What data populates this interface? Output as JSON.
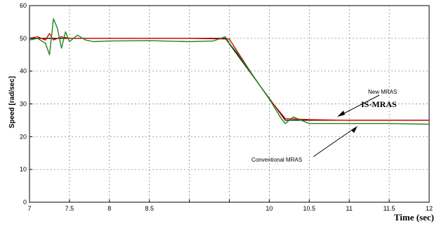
{
  "chart_data": {
    "type": "line",
    "xlabel": "Time (sec)",
    "ylabel": "Speed [rad/sec]",
    "xlim": [
      7,
      12
    ],
    "ylim": [
      0,
      60
    ],
    "x_ticks": [
      "7",
      "7.5",
      "8",
      "8.5",
      "9",
      "9.5",
      "10",
      "10.5",
      "11",
      "11.5",
      "12"
    ],
    "x_tick_labels_visible": [
      "7",
      "7.5",
      "8",
      "8.5",
      "",
      "",
      "10",
      "10.5",
      "11",
      "11.5",
      "12"
    ],
    "y_ticks": [
      "0",
      "10",
      "20",
      "30",
      "40",
      "50",
      "60"
    ],
    "grid": true,
    "series": [
      {
        "color": "#000000",
        "x": [
          7.0,
          9.45,
          10.2,
          12.0
        ],
        "y": [
          50,
          50,
          25,
          25
        ]
      },
      {
        "color": "#e00000",
        "x": [
          7.0,
          7.1,
          7.2,
          7.25,
          7.3,
          7.4,
          7.5,
          8.0,
          9.0,
          9.5,
          9.6,
          9.8,
          10.0,
          10.2,
          10.5,
          11.0,
          11.5,
          12.0
        ],
        "y": [
          50,
          50.5,
          49.5,
          51.5,
          49.5,
          50.5,
          50,
          50,
          50,
          49.8,
          46,
          38.5,
          31.5,
          25.5,
          25.2,
          25,
          25,
          25
        ]
      },
      {
        "color": "#1a8a1a",
        "x": [
          7.0,
          7.1,
          7.2,
          7.25,
          7.3,
          7.35,
          7.4,
          7.45,
          7.5,
          7.6,
          7.7,
          7.8,
          8.0,
          8.5,
          9.0,
          9.3,
          9.45,
          9.5,
          9.6,
          9.8,
          10.0,
          10.15,
          10.2,
          10.3,
          10.5,
          11.0,
          11.5,
          12.0
        ],
        "y": [
          49.5,
          50,
          48.5,
          45,
          56,
          53,
          47,
          52,
          49,
          51,
          49.5,
          49,
          49.2,
          49.3,
          49,
          49.2,
          50.5,
          48.5,
          45.5,
          38.5,
          31.5,
          25.5,
          24,
          26,
          24,
          24,
          24,
          23.8
        ]
      }
    ],
    "annotations": [
      {
        "text": "New MRAS",
        "x": 11.0,
        "y": 32.5
      },
      {
        "text": "IS-MRAS",
        "x": 10.8,
        "y": 29.0
      },
      {
        "text": "Conventional MRAS",
        "x": 9.3,
        "y": 13.5
      }
    ]
  }
}
